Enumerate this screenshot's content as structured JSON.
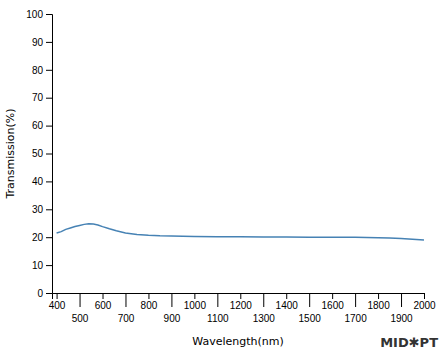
{
  "chart_data": {
    "type": "line",
    "xlabel": "Wavelength(nm)",
    "ylabel": "Transmission(%)",
    "annotations": [
      {
        "text": "MID✱PT"
      }
    ],
    "x": [
      400,
      420,
      440,
      460,
      480,
      500,
      520,
      540,
      560,
      580,
      600,
      630,
      660,
      700,
      750,
      800,
      850,
      900,
      950,
      1000,
      1100,
      1200,
      1300,
      1400,
      1500,
      1600,
      1700,
      1800,
      1850,
      1900,
      1950,
      2000
    ],
    "values": [
      21.5,
      22.0,
      22.8,
      23.3,
      23.8,
      24.2,
      24.6,
      24.8,
      24.7,
      24.4,
      23.8,
      23.0,
      22.3,
      21.5,
      21.0,
      20.7,
      20.5,
      20.4,
      20.3,
      20.25,
      20.2,
      20.15,
      20.1,
      20.05,
      20.0,
      20.0,
      19.95,
      19.8,
      19.7,
      19.5,
      19.3,
      19.0
    ],
    "xlim": [
      380,
      2000
    ],
    "ylim": [
      0,
      100
    ],
    "xticks": [
      400,
      500,
      600,
      700,
      800,
      900,
      1000,
      1100,
      1200,
      1300,
      1400,
      1500,
      1600,
      1700,
      1800,
      1900,
      2000
    ],
    "yticks": [
      0,
      10,
      20,
      30,
      40,
      50,
      60,
      70,
      80,
      90,
      100
    ],
    "grid": false
  }
}
